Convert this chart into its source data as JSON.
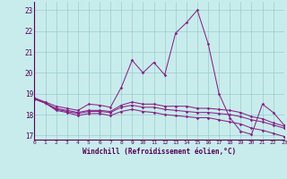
{
  "xlabel": "Windchill (Refroidissement éolien,°C)",
  "bg_color": "#c8ecec",
  "line_color": "#882288",
  "grid_color": "#99cccc",
  "yticks": [
    17,
    18,
    19,
    20,
    21,
    22,
    23
  ],
  "xticks": [
    0,
    1,
    2,
    3,
    4,
    5,
    6,
    7,
    8,
    9,
    10,
    11,
    12,
    13,
    14,
    15,
    16,
    17,
    18,
    19,
    20,
    21,
    22,
    23
  ],
  "ylim": [
    16.8,
    23.4
  ],
  "xlim": [
    0,
    23
  ],
  "curve1": [
    18.8,
    18.6,
    18.4,
    18.3,
    18.2,
    18.5,
    18.45,
    18.35,
    19.3,
    20.6,
    20.0,
    20.5,
    19.9,
    21.9,
    22.4,
    23.0,
    21.4,
    19.0,
    17.85,
    17.2,
    17.05,
    18.5,
    18.1,
    17.5
  ],
  "curve2": [
    18.75,
    18.55,
    18.3,
    18.2,
    18.1,
    18.2,
    18.2,
    18.15,
    18.45,
    18.6,
    18.5,
    18.5,
    18.4,
    18.4,
    18.4,
    18.3,
    18.3,
    18.25,
    18.2,
    18.1,
    17.9,
    17.8,
    17.6,
    17.45
  ],
  "curve3": [
    18.75,
    18.55,
    18.25,
    18.15,
    18.05,
    18.15,
    18.15,
    18.1,
    18.35,
    18.45,
    18.35,
    18.35,
    18.25,
    18.2,
    18.15,
    18.1,
    18.1,
    18.05,
    18.0,
    17.9,
    17.75,
    17.65,
    17.5,
    17.35
  ],
  "curve4": [
    18.75,
    18.55,
    18.2,
    18.1,
    17.95,
    18.05,
    18.05,
    17.95,
    18.15,
    18.25,
    18.15,
    18.1,
    18.0,
    17.95,
    17.9,
    17.85,
    17.85,
    17.75,
    17.65,
    17.55,
    17.35,
    17.25,
    17.1,
    16.95
  ]
}
